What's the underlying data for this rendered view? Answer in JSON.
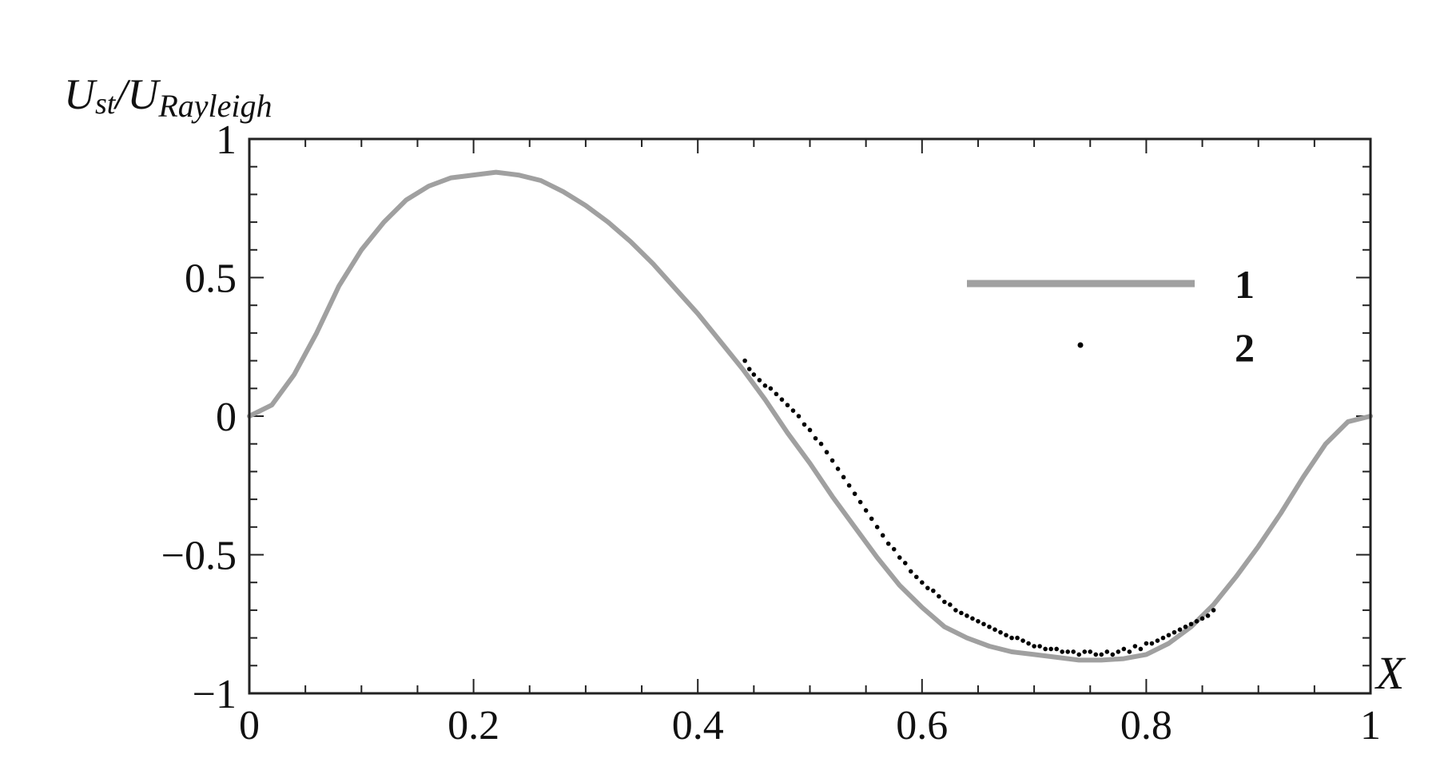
{
  "chart_data": {
    "type": "line",
    "title": "",
    "ylabel": {
      "main": "U",
      "sub1": "st",
      "slash": "/U",
      "sub2": "Rayleigh"
    },
    "xlabel": "X",
    "xlim": [
      0,
      1
    ],
    "ylim": [
      -1,
      1
    ],
    "x_ticks": [
      0,
      0.2,
      0.4,
      0.6,
      0.8,
      1
    ],
    "x_tick_labels": [
      "0",
      "0.2",
      "0.4",
      "0.6",
      "0.8",
      "1"
    ],
    "y_ticks": [
      1,
      0.5,
      0,
      -0.5,
      -1
    ],
    "y_tick_labels": [
      "1",
      "0.5",
      "0",
      "−0.5",
      "−1"
    ],
    "grid": false,
    "legend_position": "right",
    "series": [
      {
        "name": "1",
        "kind": "line",
        "color": "#a0a0a0",
        "x": [
          0,
          0.02,
          0.04,
          0.06,
          0.08,
          0.1,
          0.12,
          0.14,
          0.16,
          0.18,
          0.2,
          0.22,
          0.24,
          0.26,
          0.28,
          0.3,
          0.32,
          0.34,
          0.36,
          0.38,
          0.4,
          0.42,
          0.44,
          0.46,
          0.48,
          0.5,
          0.52,
          0.54,
          0.56,
          0.58,
          0.6,
          0.62,
          0.64,
          0.66,
          0.68,
          0.7,
          0.72,
          0.74,
          0.76,
          0.78,
          0.8,
          0.82,
          0.84,
          0.86,
          0.88,
          0.9,
          0.92,
          0.94,
          0.96,
          0.98,
          1
        ],
        "y": [
          0,
          0.04,
          0.15,
          0.3,
          0.47,
          0.6,
          0.7,
          0.78,
          0.83,
          0.86,
          0.87,
          0.88,
          0.87,
          0.85,
          0.81,
          0.76,
          0.7,
          0.63,
          0.55,
          0.46,
          0.37,
          0.27,
          0.17,
          0.06,
          -0.06,
          -0.17,
          -0.29,
          -0.4,
          -0.51,
          -0.61,
          -0.69,
          -0.76,
          -0.8,
          -0.83,
          -0.85,
          -0.86,
          -0.87,
          -0.88,
          -0.88,
          -0.875,
          -0.86,
          -0.82,
          -0.76,
          -0.68,
          -0.58,
          -0.47,
          -0.35,
          -0.22,
          -0.1,
          -0.02,
          0
        ]
      },
      {
        "name": "2",
        "kind": "scatter",
        "color": "#000000",
        "x": [
          0.442,
          0.446,
          0.45,
          0.455,
          0.46,
          0.465,
          0.47,
          0.475,
          0.48,
          0.485,
          0.49,
          0.495,
          0.5,
          0.505,
          0.51,
          0.515,
          0.52,
          0.525,
          0.53,
          0.535,
          0.54,
          0.545,
          0.55,
          0.555,
          0.56,
          0.565,
          0.57,
          0.575,
          0.58,
          0.585,
          0.59,
          0.595,
          0.6,
          0.605,
          0.61,
          0.615,
          0.62,
          0.625,
          0.63,
          0.635,
          0.64,
          0.645,
          0.65,
          0.655,
          0.66,
          0.665,
          0.67,
          0.675,
          0.68,
          0.685,
          0.69,
          0.695,
          0.7,
          0.705,
          0.71,
          0.715,
          0.72,
          0.725,
          0.73,
          0.735,
          0.74,
          0.745,
          0.75,
          0.755,
          0.76,
          0.765,
          0.77,
          0.775,
          0.78,
          0.785,
          0.79,
          0.795,
          0.8,
          0.805,
          0.81,
          0.815,
          0.82,
          0.825,
          0.83,
          0.835,
          0.84,
          0.845,
          0.85,
          0.855,
          0.86
        ],
        "y": [
          0.2,
          0.17,
          0.15,
          0.13,
          0.11,
          0.1,
          0.08,
          0.06,
          0.04,
          0.02,
          0.0,
          -0.03,
          -0.05,
          -0.08,
          -0.1,
          -0.13,
          -0.16,
          -0.19,
          -0.22,
          -0.25,
          -0.28,
          -0.31,
          -0.34,
          -0.37,
          -0.4,
          -0.43,
          -0.46,
          -0.48,
          -0.51,
          -0.53,
          -0.56,
          -0.58,
          -0.6,
          -0.62,
          -0.63,
          -0.65,
          -0.67,
          -0.68,
          -0.7,
          -0.71,
          -0.72,
          -0.73,
          -0.74,
          -0.75,
          -0.76,
          -0.77,
          -0.78,
          -0.79,
          -0.8,
          -0.8,
          -0.81,
          -0.82,
          -0.83,
          -0.83,
          -0.84,
          -0.84,
          -0.84,
          -0.85,
          -0.85,
          -0.85,
          -0.86,
          -0.85,
          -0.85,
          -0.86,
          -0.86,
          -0.85,
          -0.86,
          -0.85,
          -0.84,
          -0.85,
          -0.83,
          -0.84,
          -0.82,
          -0.82,
          -0.81,
          -0.8,
          -0.79,
          -0.78,
          -0.77,
          -0.76,
          -0.75,
          -0.74,
          -0.73,
          -0.72,
          -0.7
        ]
      }
    ]
  }
}
